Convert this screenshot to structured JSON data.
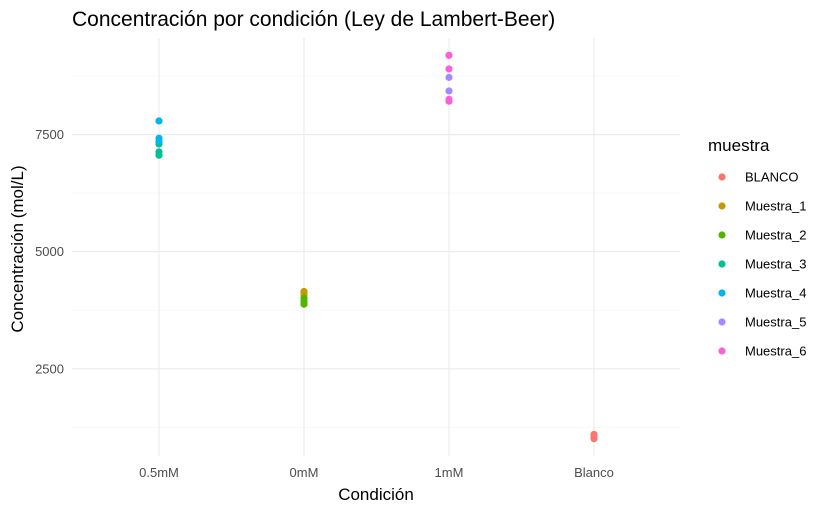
{
  "chart_data": {
    "type": "scatter",
    "title": "Concentración por condición (Ley de Lambert-Beer)",
    "xlabel": "Condición",
    "ylabel": "Concentración (mol/L)",
    "categories": [
      "0.5mM",
      "0mM",
      "1mM",
      "Blanco"
    ],
    "y_ticks": [
      2500,
      5000,
      7500
    ],
    "y_tick_labels": [
      "2500",
      "5000",
      "7500"
    ],
    "ylim": [
      640,
      9560
    ],
    "grid": true,
    "legend": {
      "title": "muestra",
      "position": "right"
    },
    "series": [
      {
        "name": "BLANCO",
        "color": "#F8766D",
        "points": [
          {
            "x": "Blanco",
            "y": 1010
          },
          {
            "x": "Blanco",
            "y": 1060
          },
          {
            "x": "Blanco",
            "y": 1100
          }
        ]
      },
      {
        "name": "Muestra_1",
        "color": "#C49A00",
        "points": [
          {
            "x": "0mM",
            "y": 4150
          },
          {
            "x": "0mM",
            "y": 4090
          }
        ]
      },
      {
        "name": "Muestra_2",
        "color": "#53B400",
        "points": [
          {
            "x": "0mM",
            "y": 3880
          },
          {
            "x": "0mM",
            "y": 3940
          },
          {
            "x": "0mM",
            "y": 4010
          }
        ]
      },
      {
        "name": "Muestra_3",
        "color": "#00C094",
        "points": [
          {
            "x": "0.5mM",
            "y": 7060
          },
          {
            "x": "0.5mM",
            "y": 7130
          },
          {
            "x": "0.5mM",
            "y": 7300
          }
        ]
      },
      {
        "name": "Muestra_4",
        "color": "#00B6EB",
        "points": [
          {
            "x": "0.5mM",
            "y": 7790
          },
          {
            "x": "0.5mM",
            "y": 7420
          },
          {
            "x": "0.5mM",
            "y": 7350
          }
        ]
      },
      {
        "name": "Muestra_5",
        "color": "#A58AFF",
        "points": [
          {
            "x": "1mM",
            "y": 8720
          },
          {
            "x": "1mM",
            "y": 8430
          }
        ]
      },
      {
        "name": "Muestra_6",
        "color": "#FB61D7",
        "points": [
          {
            "x": "1mM",
            "y": 9190
          },
          {
            "x": "1mM",
            "y": 8900
          },
          {
            "x": "1mM",
            "y": 8250
          },
          {
            "x": "1mM",
            "y": 8210
          }
        ]
      }
    ]
  }
}
